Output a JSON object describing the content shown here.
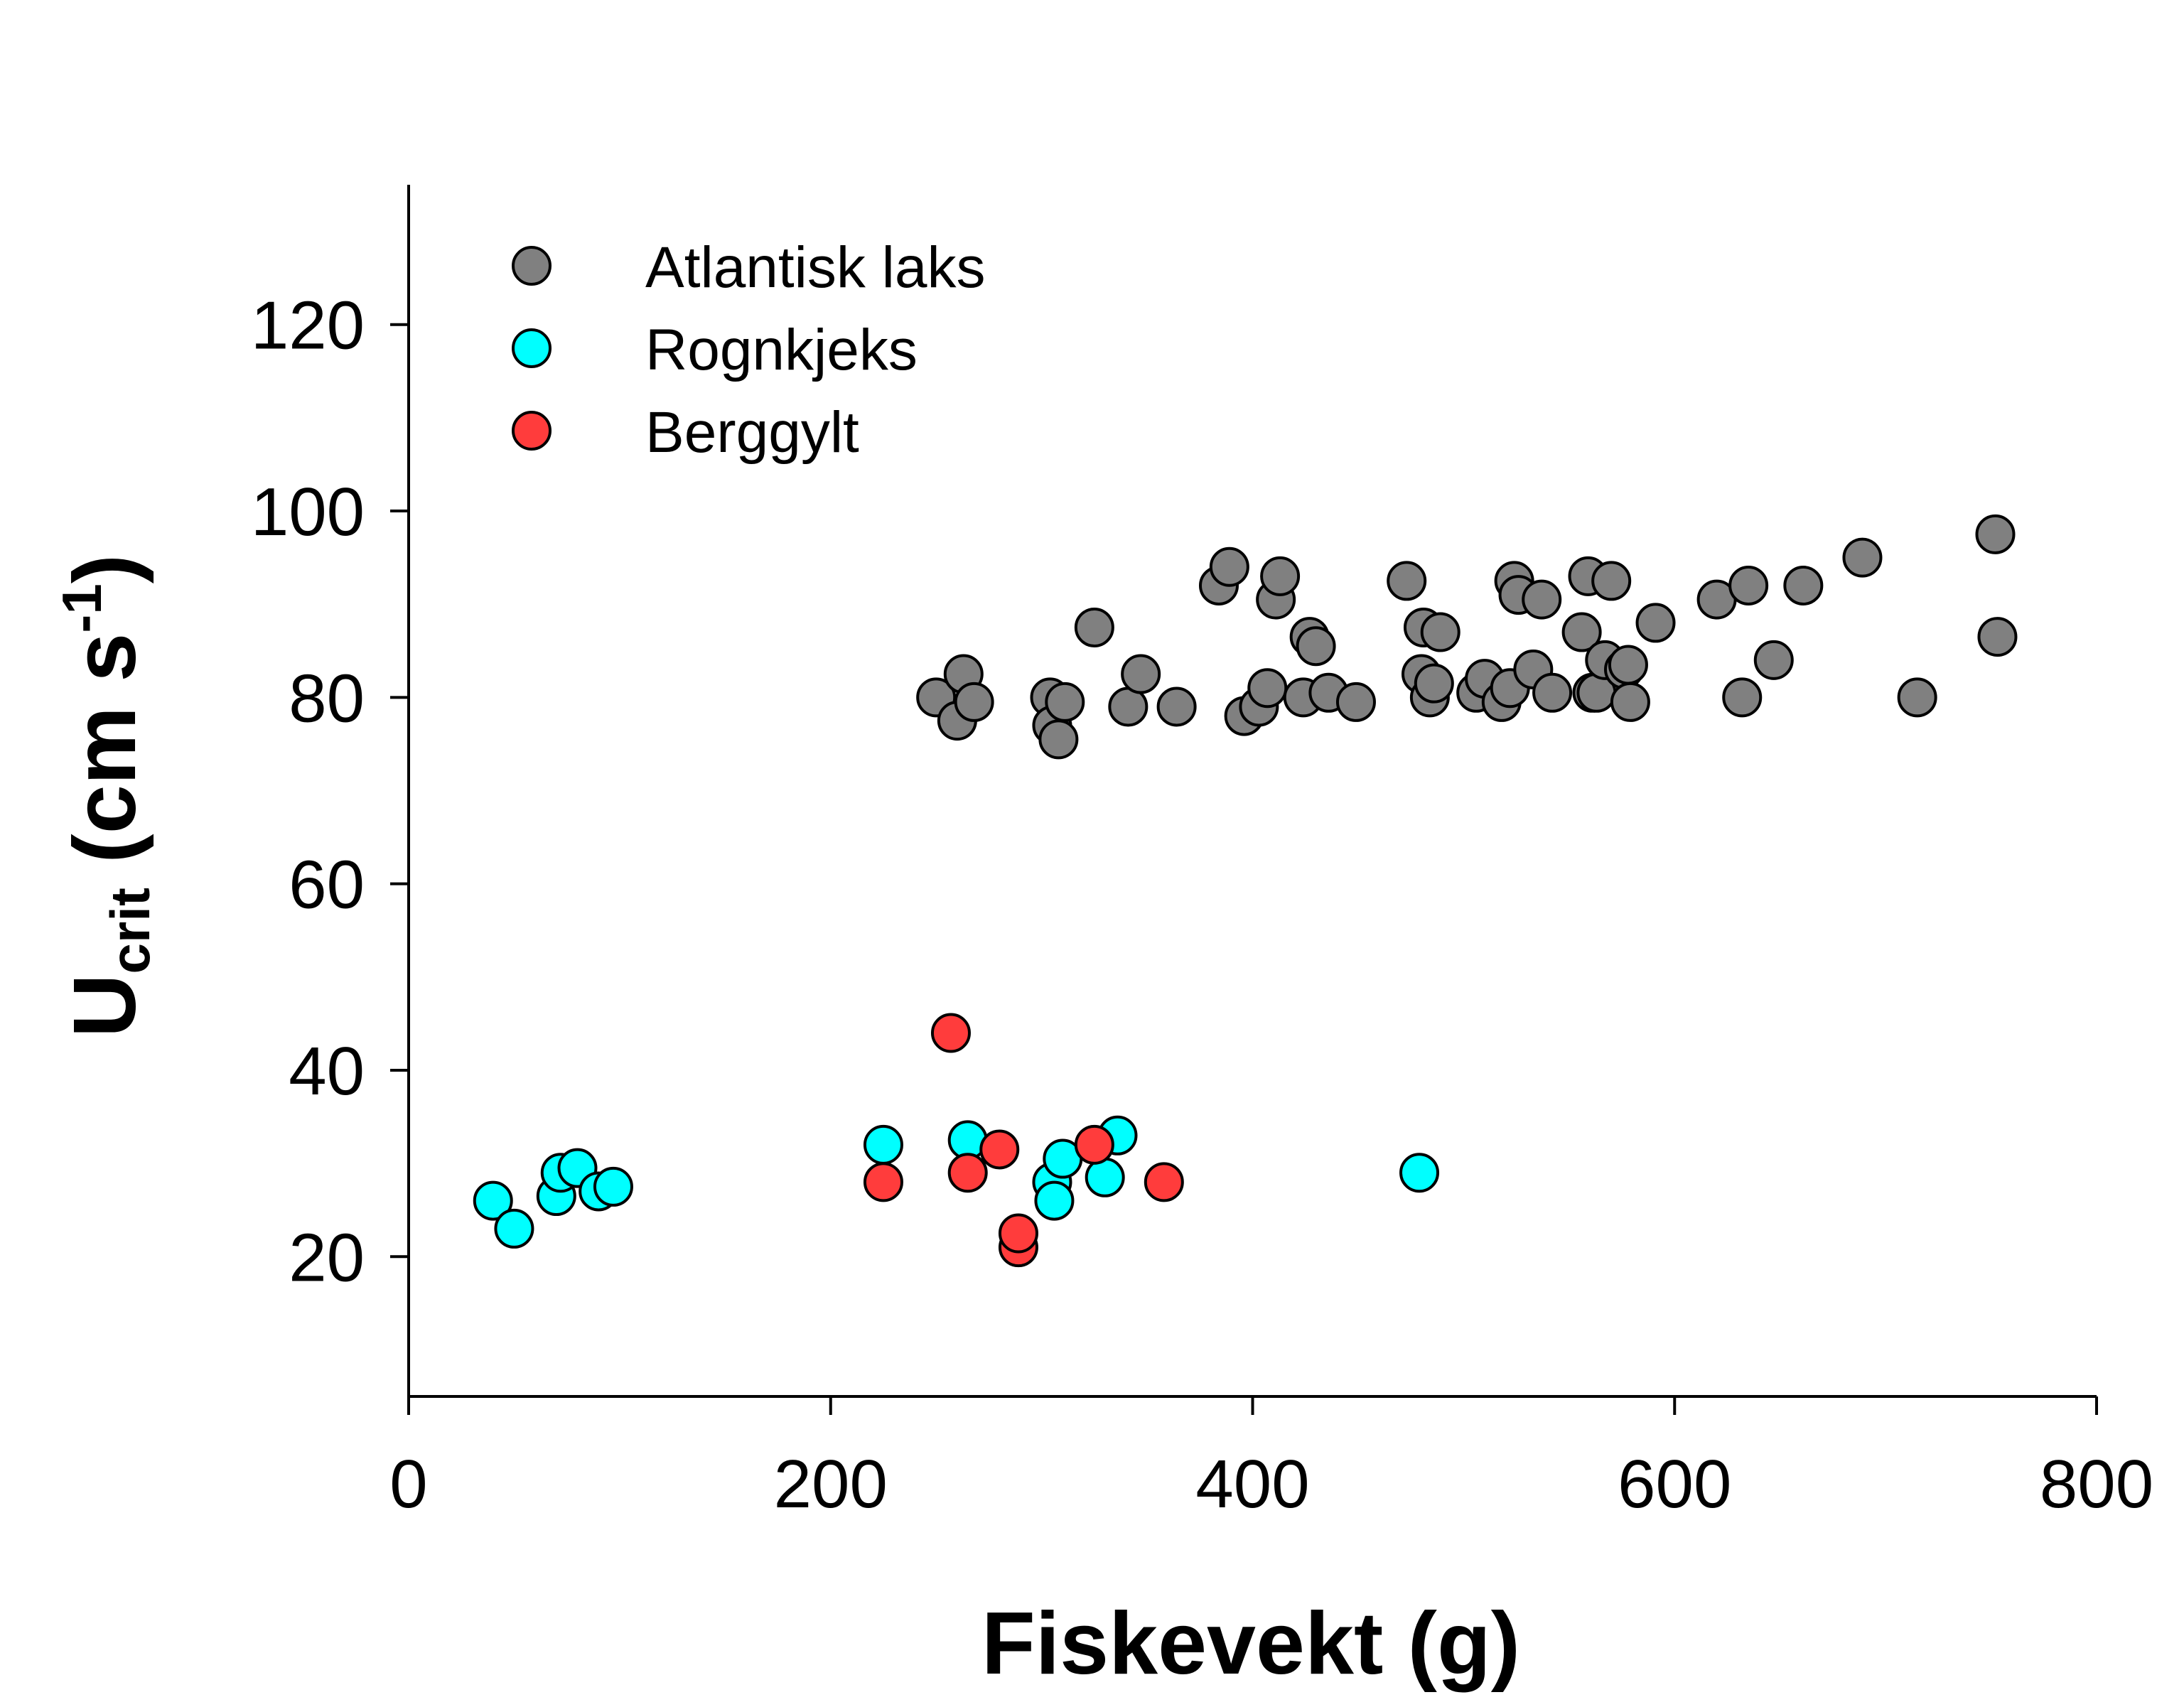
{
  "chart_data": {
    "type": "scatter",
    "xlabel": "Fiskevekt (g)",
    "ylabel": {
      "main": "U",
      "sub": "crit",
      "unit_open": " (cm s",
      "sup": "-1",
      "unit_close": ")"
    },
    "xlim": [
      0,
      800
    ],
    "ylim": [
      5,
      135
    ],
    "xticks": [
      0,
      200,
      400,
      600,
      800
    ],
    "yticks": [
      20,
      40,
      60,
      80,
      100,
      120
    ],
    "grid": false,
    "legend_position": "top-left",
    "series": [
      {
        "name": "Atlantisk laks",
        "color": "#808080",
        "points": [
          [
            250,
            80
          ],
          [
            260,
            77.5
          ],
          [
            263,
            82.5
          ],
          [
            268,
            79.5
          ],
          [
            304,
            80
          ],
          [
            305,
            77
          ],
          [
            308,
            75.5
          ],
          [
            311,
            79.5
          ],
          [
            325,
            87.5
          ],
          [
            341,
            79
          ],
          [
            347,
            82.5
          ],
          [
            364,
            79
          ],
          [
            384,
            92
          ],
          [
            389,
            94
          ],
          [
            396,
            78
          ],
          [
            403,
            79
          ],
          [
            407,
            81
          ],
          [
            411,
            90.5
          ],
          [
            413,
            93
          ],
          [
            424,
            80
          ],
          [
            427,
            86.5
          ],
          [
            430,
            85.5
          ],
          [
            436,
            80.5
          ],
          [
            449,
            79.5
          ],
          [
            473,
            92.5
          ],
          [
            480,
            82.5
          ],
          [
            481,
            87.5
          ],
          [
            484,
            80
          ],
          [
            486,
            81.5
          ],
          [
            489,
            87
          ],
          [
            506,
            80.5
          ],
          [
            510,
            82
          ],
          [
            518,
            79.5
          ],
          [
            522,
            81
          ],
          [
            524,
            92.5
          ],
          [
            526,
            91
          ],
          [
            533,
            83
          ],
          [
            537,
            90.5
          ],
          [
            542,
            80.5
          ],
          [
            556,
            87
          ],
          [
            559,
            93
          ],
          [
            561,
            80.5
          ],
          [
            563,
            80.5
          ],
          [
            567,
            84
          ],
          [
            570,
            92.5
          ],
          [
            576,
            83
          ],
          [
            578,
            83.5
          ],
          [
            579,
            79.5
          ],
          [
            591,
            88
          ],
          [
            620,
            90.5
          ],
          [
            632,
            80
          ],
          [
            635,
            92
          ],
          [
            647,
            84
          ],
          [
            661,
            92
          ],
          [
            689,
            95
          ],
          [
            715,
            80
          ],
          [
            752,
            97.5
          ],
          [
            753,
            86.5
          ]
        ]
      },
      {
        "name": "Rognkjeks",
        "color": "#00FFFF",
        "points": [
          [
            40,
            26
          ],
          [
            50,
            23
          ],
          [
            70,
            26.5
          ],
          [
            72,
            29
          ],
          [
            80,
            29.5
          ],
          [
            90,
            27
          ],
          [
            97,
            27.5
          ],
          [
            225,
            32
          ],
          [
            265,
            32.5
          ],
          [
            305,
            28
          ],
          [
            306,
            26
          ],
          [
            310,
            30.5
          ],
          [
            330,
            28.5
          ],
          [
            336,
            33
          ],
          [
            479,
            29
          ]
        ]
      },
      {
        "name": "Berggylt",
        "color": "#FF3C3C",
        "points": [
          [
            225,
            28
          ],
          [
            257,
            44
          ],
          [
            265,
            29
          ],
          [
            280,
            31.5
          ],
          [
            289,
            21
          ],
          [
            289,
            22.5
          ],
          [
            325,
            32
          ],
          [
            358,
            28
          ]
        ]
      }
    ]
  }
}
